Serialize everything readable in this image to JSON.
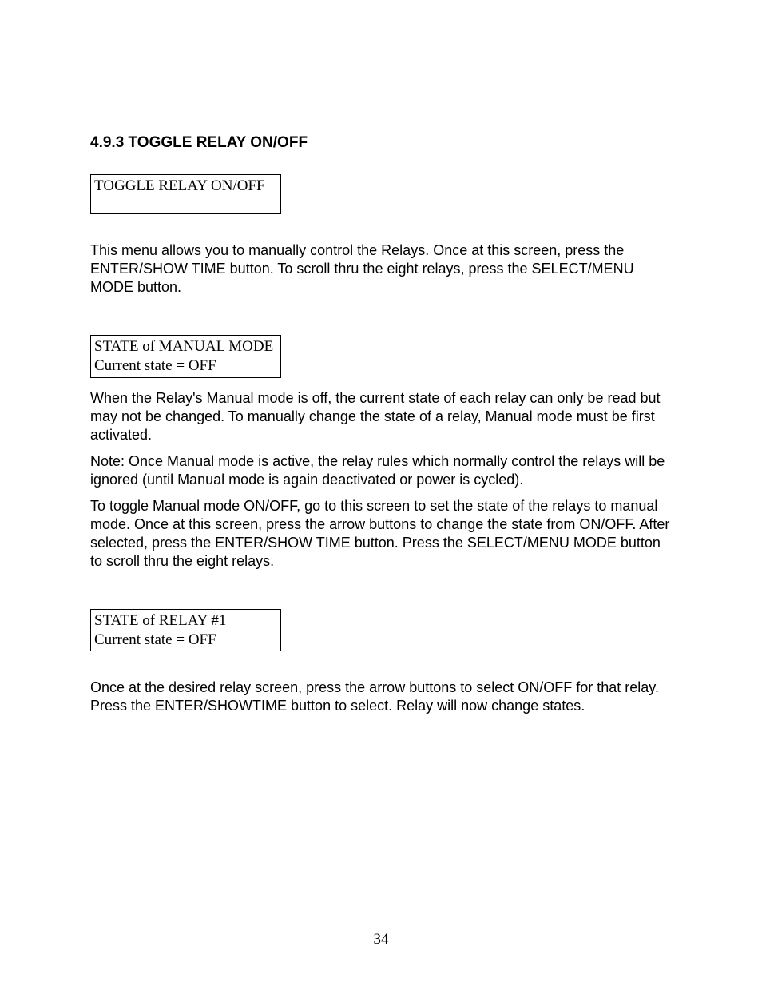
{
  "heading": "4.9.3  TOGGLE RELAY ON/OFF",
  "box1_line1": "TOGGLE RELAY ON/OFF",
  "para1": "This menu allows you to manually control the Relays.  Once at this screen, press the ENTER/SHOW TIME button.  To scroll thru the eight relays, press the SELECT/MENU MODE button.",
  "box2_line1": "STATE of MANUAL MODE",
  "box2_line2": "Current state    =  OFF",
  "para2": "When the Relay's Manual mode is off, the current state of each relay can only be read but may not be changed.  To manually change the state of a relay, Manual mode must be first activated.",
  "para3": "Note:  Once Manual mode is active, the relay rules which normally control the relays will be ignored (until Manual mode is again deactivated or power is cycled).",
  "para4": "To toggle Manual mode ON/OFF, go to this screen to set the state of the relays to manual mode.  Once at this screen, press the arrow buttons to change the state from ON/OFF.  After selected,  press the ENTER/SHOW TIME button.  Press the SELECT/MENU MODE button to scroll thru the eight relays.",
  "box3_line1": "STATE of  RELAY  #1",
  "box3_line2": "Current state  = OFF",
  "para5": "Once at the desired relay screen, press the arrow buttons to select ON/OFF for that relay.  Press the ENTER/SHOWTIME button to select.  Relay will now change states.",
  "page_number": "34"
}
